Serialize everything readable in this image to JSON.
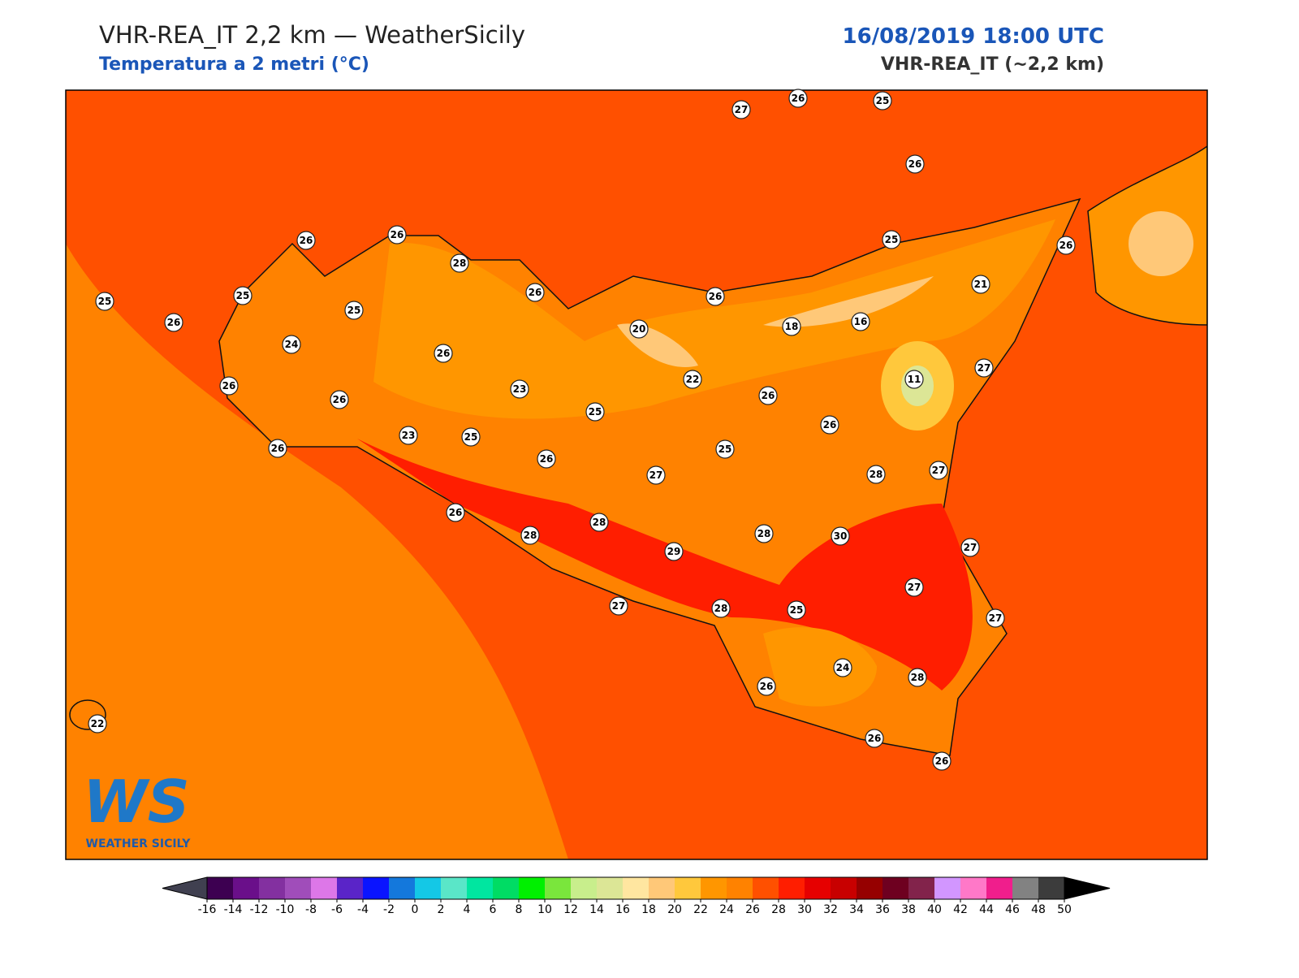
{
  "header": {
    "title": "VHR-REA_IT 2,2 km — WeatherSicily",
    "subtitle": "Temperatura a 2 metri (°C)",
    "date": "16/08/2019 18:00 UTC",
    "model": "VHR-REA_IT (~2,2 km)"
  },
  "logo": {
    "mark": "WS",
    "text": "WEATHER SICILY"
  },
  "stations": [
    27,
    26,
    25,
    26,
    26,
    26,
    28,
    25,
    25,
    26,
    25,
    24,
    26,
    26,
    20,
    26,
    18,
    16,
    25,
    21,
    26,
    26,
    26,
    23,
    25,
    22,
    26,
    11,
    27,
    26,
    26,
    23,
    25,
    26,
    27,
    25,
    28,
    27,
    26,
    28,
    28,
    29,
    28,
    30,
    27,
    27,
    27,
    28,
    25,
    27,
    24,
    28,
    26,
    22,
    26,
    26
  ],
  "colorbar": {
    "ticks": [
      -16,
      -14,
      -12,
      -10,
      -8,
      -6,
      -4,
      -2,
      0,
      2,
      4,
      6,
      8,
      10,
      12,
      14,
      16,
      18,
      20,
      22,
      24,
      26,
      28,
      30,
      32,
      34,
      36,
      38,
      40,
      42,
      44,
      46,
      48,
      50
    ],
    "colors": [
      "#3d0051",
      "#6a0f8a",
      "#8330a0",
      "#a04dba",
      "#dd77e8",
      "#5a24c8",
      "#0a14ff",
      "#1478dc",
      "#14c8e6",
      "#5ae6c8",
      "#00e6a0",
      "#00dc64",
      "#00f000",
      "#7ae63c",
      "#c8ee8c",
      "#dce696",
      "#ffe6a0",
      "#ffc878",
      "#ffc83c",
      "#ff9600",
      "#ff8200",
      "#ff5000",
      "#ff1e00",
      "#e60000",
      "#c80000",
      "#960000",
      "#6e0020",
      "#82234b",
      "#d296ff",
      "#ff78c8",
      "#f01e8c",
      "#828282",
      "#3c3c3c"
    ],
    "under": "#404050",
    "over": "#000000"
  }
}
